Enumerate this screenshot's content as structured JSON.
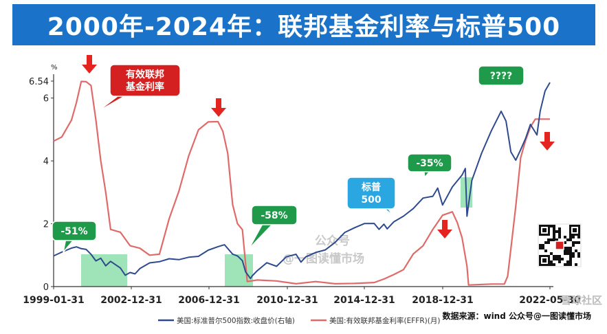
{
  "title": "2000年-2024年：联邦基金利率与标普500",
  "chart_data": {
    "type": "line",
    "x_ticks": [
      "1999-01-31",
      "2002-12-31",
      "2006-12-31",
      "2010-12-31",
      "2014-12-31",
      "2018-12-31",
      "2022-05-30"
    ],
    "y_unit": "%",
    "y_ticks": [
      "0",
      "2",
      "4",
      "6",
      "6.54"
    ],
    "ylim": [
      0,
      6.54
    ],
    "series": [
      {
        "name": "美国:有效联邦基金利率(EFFR)(月)",
        "color": "#e06a6a",
        "points": [
          [
            "1999-01",
            4.63
          ],
          [
            "1999-06",
            4.76
          ],
          [
            "1999-12",
            5.3
          ],
          [
            "2000-03",
            5.85
          ],
          [
            "2000-06",
            6.53
          ],
          [
            "2000-09",
            6.52
          ],
          [
            "2000-12",
            6.4
          ],
          [
            "2001-03",
            5.3
          ],
          [
            "2001-06",
            4.0
          ],
          [
            "2001-09",
            3.0
          ],
          [
            "2001-12",
            1.82
          ],
          [
            "2002-06",
            1.73
          ],
          [
            "2002-12",
            1.3
          ],
          [
            "2003-06",
            1.22
          ],
          [
            "2003-12",
            1.0
          ],
          [
            "2004-06",
            1.03
          ],
          [
            "2004-12",
            2.16
          ],
          [
            "2005-06",
            3.04
          ],
          [
            "2005-12",
            4.16
          ],
          [
            "2006-06",
            4.99
          ],
          [
            "2006-12",
            5.24
          ],
          [
            "2007-06",
            5.25
          ],
          [
            "2007-09",
            4.94
          ],
          [
            "2007-12",
            4.24
          ],
          [
            "2008-03",
            2.61
          ],
          [
            "2008-06",
            2.0
          ],
          [
            "2008-09",
            1.81
          ],
          [
            "2008-12",
            0.16
          ],
          [
            "2009-06",
            0.21
          ],
          [
            "2010-06",
            0.18
          ],
          [
            "2011-06",
            0.09
          ],
          [
            "2012-06",
            0.16
          ],
          [
            "2013-06",
            0.09
          ],
          [
            "2014-06",
            0.1
          ],
          [
            "2015-06",
            0.13
          ],
          [
            "2015-12",
            0.24
          ],
          [
            "2016-06",
            0.38
          ],
          [
            "2016-12",
            0.54
          ],
          [
            "2017-06",
            1.04
          ],
          [
            "2017-12",
            1.3
          ],
          [
            "2018-06",
            1.82
          ],
          [
            "2018-12",
            2.27
          ],
          [
            "2019-06",
            2.38
          ],
          [
            "2019-09",
            2.04
          ],
          [
            "2019-12",
            1.55
          ],
          [
            "2020-03",
            0.65
          ],
          [
            "2020-04",
            0.05
          ],
          [
            "2021-06",
            0.08
          ],
          [
            "2022-02",
            0.08
          ],
          [
            "2022-04",
            0.33
          ],
          [
            "2022-06",
            1.21
          ],
          [
            "2022-09",
            2.56
          ],
          [
            "2022-12",
            4.1
          ],
          [
            "2023-03",
            4.65
          ],
          [
            "2023-06",
            5.08
          ],
          [
            "2023-09",
            5.33
          ],
          [
            "2024-06",
            5.33
          ]
        ]
      },
      {
        "name": "美国:标准普尔500指数:收盘价(右轴)",
        "color": "#2e4a8f",
        "points": [
          [
            "1999-01",
            1280
          ],
          [
            "1999-06",
            1370
          ],
          [
            "1999-12",
            1469
          ],
          [
            "2000-03",
            1499
          ],
          [
            "2000-06",
            1455
          ],
          [
            "2000-09",
            1437
          ],
          [
            "2000-12",
            1320
          ],
          [
            "2001-03",
            1160
          ],
          [
            "2001-06",
            1224
          ],
          [
            "2001-09",
            1041
          ],
          [
            "2001-12",
            1148
          ],
          [
            "2002-06",
            990
          ],
          [
            "2002-09",
            815
          ],
          [
            "2002-12",
            880
          ],
          [
            "2003-03",
            848
          ],
          [
            "2003-06",
            975
          ],
          [
            "2003-12",
            1112
          ],
          [
            "2004-06",
            1141
          ],
          [
            "2004-12",
            1212
          ],
          [
            "2005-06",
            1191
          ],
          [
            "2005-12",
            1248
          ],
          [
            "2006-06",
            1270
          ],
          [
            "2006-12",
            1418
          ],
          [
            "2007-06",
            1503
          ],
          [
            "2007-10",
            1549
          ],
          [
            "2008-03",
            1323
          ],
          [
            "2008-06",
            1280
          ],
          [
            "2008-09",
            1166
          ],
          [
            "2008-11",
            896
          ],
          [
            "2009-02",
            735
          ],
          [
            "2009-03",
            797
          ],
          [
            "2009-06",
            919
          ],
          [
            "2009-12",
            1115
          ],
          [
            "2010-06",
            1030
          ],
          [
            "2010-12",
            1258
          ],
          [
            "2011-06",
            1320
          ],
          [
            "2011-09",
            1131
          ],
          [
            "2011-12",
            1258
          ],
          [
            "2012-06",
            1362
          ],
          [
            "2012-12",
            1426
          ],
          [
            "2013-06",
            1606
          ],
          [
            "2013-12",
            1848
          ],
          [
            "2014-06",
            1960
          ],
          [
            "2014-12",
            2059
          ],
          [
            "2015-06",
            2063
          ],
          [
            "2015-09",
            1920
          ],
          [
            "2015-12",
            2044
          ],
          [
            "2016-02",
            1932
          ],
          [
            "2016-06",
            2099
          ],
          [
            "2016-12",
            2239
          ],
          [
            "2017-06",
            2423
          ],
          [
            "2017-12",
            2674
          ],
          [
            "2018-06",
            2718
          ],
          [
            "2018-09",
            2914
          ],
          [
            "2018-12",
            2507
          ],
          [
            "2019-06",
            2942
          ],
          [
            "2019-12",
            3231
          ],
          [
            "2020-02",
            3386
          ],
          [
            "2020-03",
            2237
          ],
          [
            "2020-06",
            3100
          ],
          [
            "2020-12",
            3756
          ],
          [
            "2021-06",
            4298
          ],
          [
            "2021-12",
            4766
          ],
          [
            "2022-03",
            4530
          ],
          [
            "2022-06",
            3785
          ],
          [
            "2022-09",
            3586
          ],
          [
            "2022-12",
            3840
          ],
          [
            "2023-03",
            4109
          ],
          [
            "2023-06",
            4450
          ],
          [
            "2023-10",
            4194
          ],
          [
            "2023-12",
            4770
          ],
          [
            "2024-03",
            5254
          ],
          [
            "2024-06",
            5460
          ]
        ]
      }
    ],
    "annotations": [
      {
        "text": "有效联邦基金利率",
        "lines": [
          "有效联邦",
          "基金利率"
        ],
        "color": "#d42020"
      },
      {
        "text": "-51%",
        "color": "#1e9a4a"
      },
      {
        "text": "-58%",
        "color": "#1e9a4a"
      },
      {
        "text": "-35%",
        "color": "#1e9a4a"
      },
      {
        "text": "标普500",
        "lines": [
          "标普",
          "500"
        ],
        "color": "#2aa7e0"
      },
      {
        "text": "????",
        "color": "#1e9a4a"
      }
    ],
    "shaded_periods": [
      [
        "2000-09",
        "2002-10"
      ],
      "2007-10 to 2009-03",
      [
        "2020-02",
        "2020-03"
      ]
    ],
    "source_note": "数据来源：wind 公众号@一图读懂市场"
  },
  "watermark": {
    "line1": "公众号",
    "line2": "@一图读懂市场"
  },
  "corner_mark": "雪球社区"
}
